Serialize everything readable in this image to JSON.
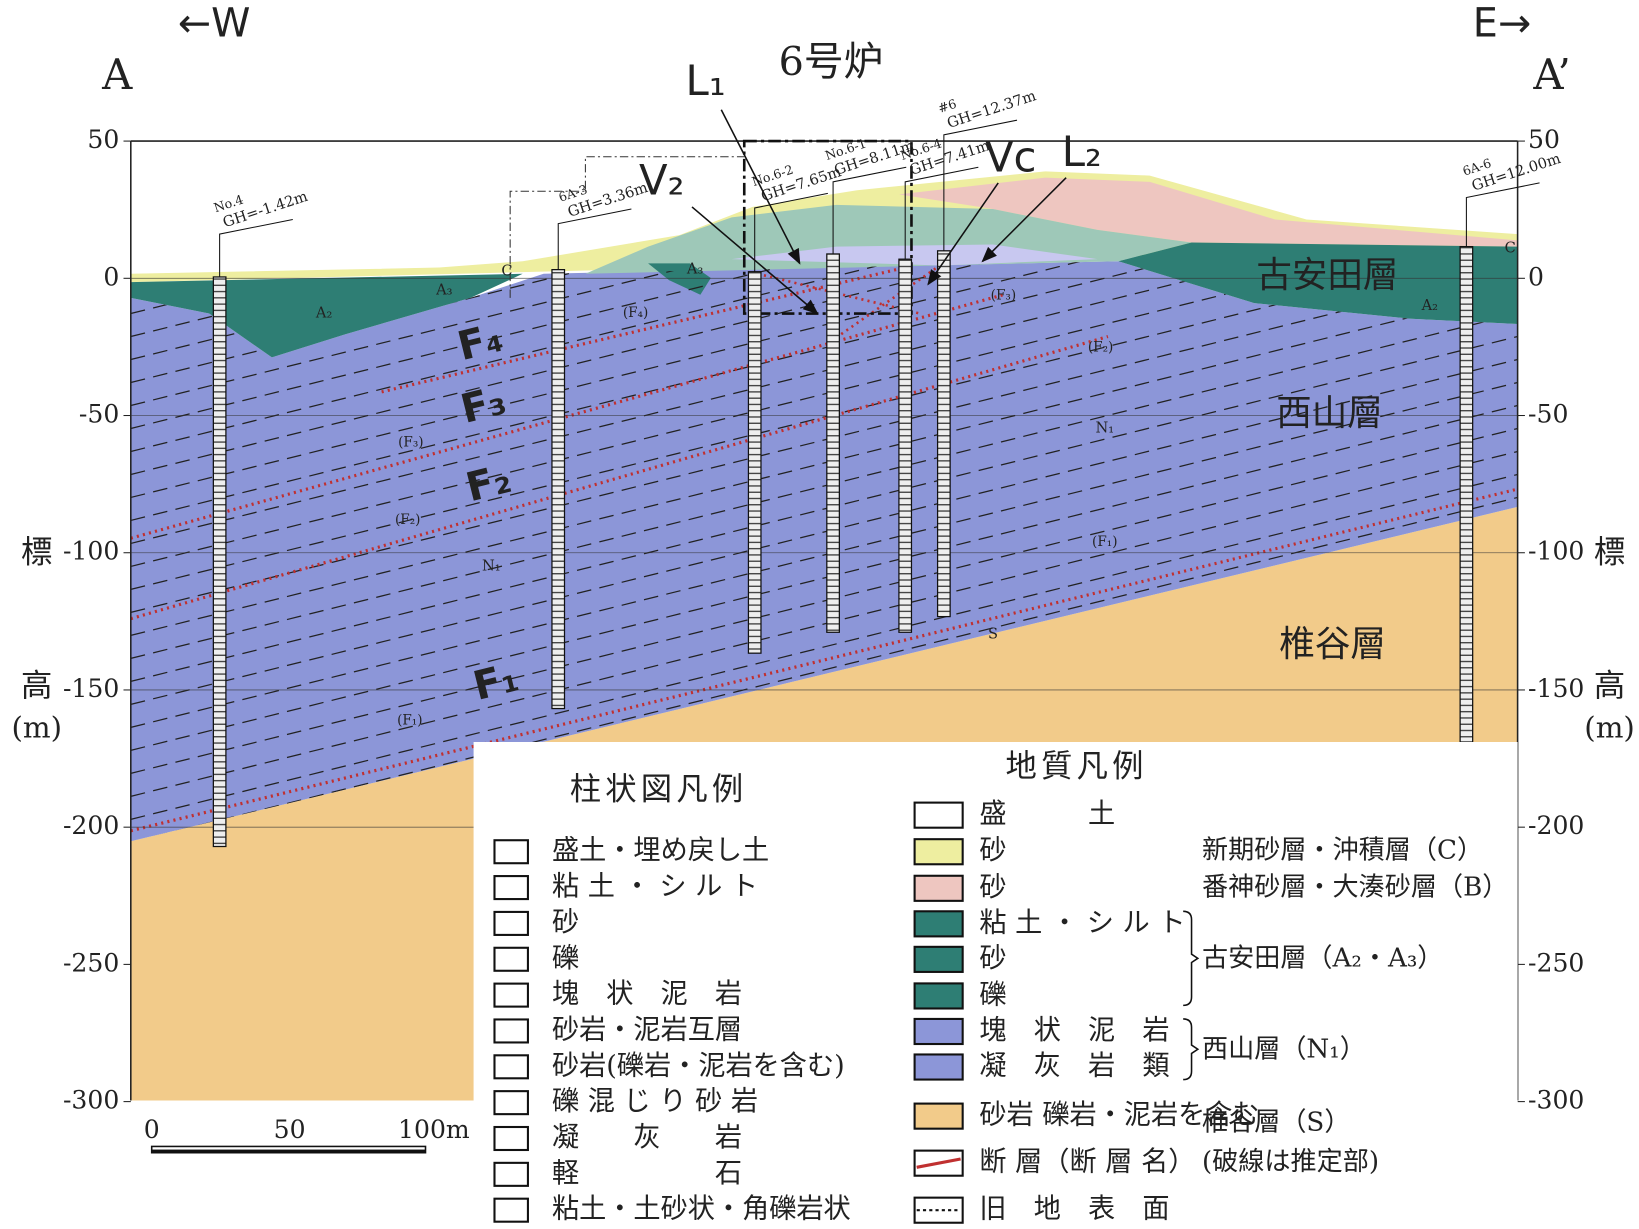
{
  "header": {
    "west": "←W",
    "east": "E→",
    "left_section": "A",
    "right_section": "A’",
    "title": "6号炉"
  },
  "axis": {
    "ticks": [
      "50",
      "0",
      "-50",
      "-100",
      "-150",
      "-200",
      "-250",
      "-300"
    ],
    "label_top": "標",
    "label_bottom": "高",
    "unit": "(m)"
  },
  "formations": [
    "古安田層",
    "西山層",
    "椎谷層"
  ],
  "unit_labels": [
    "N₁",
    "N₁",
    "S",
    "A₂",
    "A₃",
    "A₃",
    "A₂",
    "C",
    "C"
  ],
  "faults": [
    "F₄",
    "F₃",
    "F₂",
    "F₁"
  ],
  "fault_tags": [
    "(F₄)",
    "(F₃)",
    "(F₂)",
    "(F₁)",
    "(F₃)",
    "(F₂)",
    "(F₁)"
  ],
  "features": [
    "L₁",
    "V₂",
    "Vc",
    "L₂"
  ],
  "boreholes": [
    {
      "name": "No.4",
      "gh": "GH=-1.42m"
    },
    {
      "name": "6A-3",
      "gh": "GH=3.36m"
    },
    {
      "name": "No.6-2",
      "gh": "GH=7.65m"
    },
    {
      "name": "No.6-1",
      "gh": "GH=8.11m"
    },
    {
      "name": "No.6-4",
      "gh": "GH=7.41m"
    },
    {
      "name": "#6",
      "gh": "GH=12.37m"
    },
    {
      "name": "6A-6",
      "gh": "GH=12.00m"
    }
  ],
  "scale_bar": [
    "0",
    "50",
    "100m"
  ],
  "column_legend": {
    "title": "柱状図凡例",
    "items": [
      "盛土・埋め戻し土",
      "粘 土 ・ シ ル ト",
      "砂",
      "礫",
      "塊　状　泥　岩",
      "砂岩・泥岩互層",
      "砂岩(礫岩・泥岩を含む)",
      "礫 混 じ り 砂 岩",
      "凝　　灰　　岩",
      "軽　　　　　石",
      "粘土・土砂状・角礫岩状"
    ]
  },
  "geology_legend": {
    "title": "地質凡例",
    "items": [
      {
        "label": "盛　　　土",
        "color": "#ffffff"
      },
      {
        "label": "砂",
        "color": "#eeeea0"
      },
      {
        "label": "砂",
        "color": "#eec6c0"
      },
      {
        "label": "粘 土 ・ シ ル ト",
        "color": "#2e7e74"
      },
      {
        "label": "砂",
        "color": "#2e7e74"
      },
      {
        "label": "礫",
        "color": "#2e7e74"
      },
      {
        "label": "塊　状　泥　岩",
        "color": "#8c96d8"
      },
      {
        "label": "凝　灰　岩　類",
        "color": "#8c96d8"
      },
      {
        "label": "砂岩 礫岩・泥岩を含む",
        "color": "#f2cb8a"
      },
      {
        "label": "断 層（断 層 名）",
        "color": "#ffffff"
      },
      {
        "label": "旧　地　表　面",
        "color": "#ffffff"
      }
    ],
    "groups": [
      "新期砂層・沖積層（C）",
      "番神砂層・大湊砂層（B）",
      "古安田層（A₂・A₃）",
      "西山層（N₁）",
      "椎谷層（S）",
      "(破線は推定部)"
    ]
  }
}
